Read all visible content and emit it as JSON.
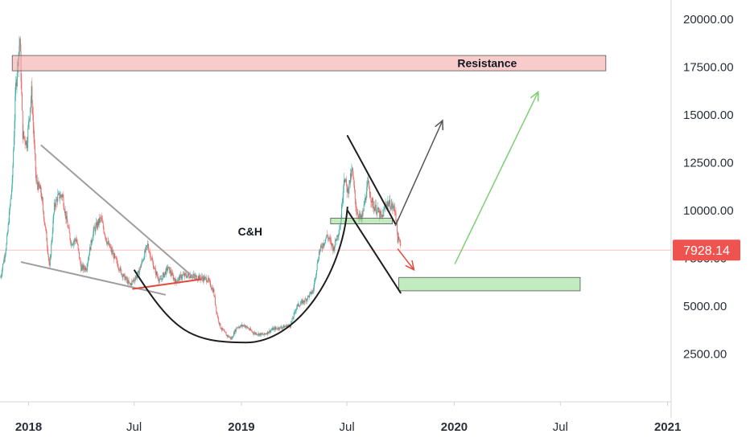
{
  "chart_data": {
    "type": "line",
    "title": "",
    "xlabel": "",
    "ylabel": "",
    "ylim": [
      0,
      21000
    ],
    "xlim": [
      "2017-11-13",
      "2021-01-07"
    ],
    "grid": false,
    "y_ticks": [
      {
        "value": 2500,
        "label": "2500.00"
      },
      {
        "value": 5000,
        "label": "5000.00"
      },
      {
        "value": 7500,
        "label": "7500.00"
      },
      {
        "value": 10000,
        "label": "10000.00"
      },
      {
        "value": 12500,
        "label": "12500.00"
      },
      {
        "value": 15000,
        "label": "15000.00"
      },
      {
        "value": 17500,
        "label": "17500.00"
      },
      {
        "value": 20000,
        "label": "20000.00"
      }
    ],
    "x_ticks": [
      {
        "date": "2018-01-01",
        "label": "2018",
        "bold": true
      },
      {
        "date": "2018-07-01",
        "label": "Jul",
        "bold": false
      },
      {
        "date": "2019-01-01",
        "label": "2019",
        "bold": true
      },
      {
        "date": "2019-07-01",
        "label": "Jul",
        "bold": false
      },
      {
        "date": "2020-01-01",
        "label": "2020",
        "bold": true
      },
      {
        "date": "2020-07-01",
        "label": "Jul",
        "bold": false
      },
      {
        "date": "2021-01-01",
        "label": "2021",
        "bold": true
      }
    ],
    "last_price": {
      "value": 7928.14,
      "label": "7928.14",
      "color": "#ef5350"
    },
    "series": [
      {
        "candle_colors": {
          "up": "#26a69a",
          "down": "#ef5350"
        },
        "x": [
          "2017-11-14",
          "2017-11-24",
          "2017-12-04",
          "2017-12-10",
          "2017-12-17",
          "2017-12-22",
          "2017-12-29",
          "2018-01-06",
          "2018-01-14",
          "2018-01-22",
          "2018-02-01",
          "2018-02-06",
          "2018-02-14",
          "2018-02-20",
          "2018-02-28",
          "2018-03-07",
          "2018-03-15",
          "2018-03-24",
          "2018-04-01",
          "2018-04-10",
          "2018-04-22",
          "2018-05-05",
          "2018-05-15",
          "2018-05-29",
          "2018-06-10",
          "2018-06-24",
          "2018-07-08",
          "2018-07-24",
          "2018-08-05",
          "2018-08-14",
          "2018-08-28",
          "2018-09-10",
          "2018-09-22",
          "2018-10-06",
          "2018-10-20",
          "2018-11-04",
          "2018-11-14",
          "2018-11-20",
          "2018-11-26",
          "2018-12-06",
          "2018-12-15",
          "2018-12-24",
          "2019-01-06",
          "2019-01-22",
          "2019-02-08",
          "2019-02-24",
          "2019-03-12",
          "2019-03-26",
          "2019-04-06",
          "2019-04-20",
          "2019-05-04",
          "2019-05-14",
          "2019-05-28",
          "2019-06-08",
          "2019-06-20",
          "2019-06-26",
          "2019-07-02",
          "2019-07-10",
          "2019-07-17",
          "2019-07-26",
          "2019-08-06",
          "2019-08-14",
          "2019-08-22",
          "2019-08-30",
          "2019-09-06",
          "2019-09-14",
          "2019-09-22",
          "2019-09-26",
          "2019-10-01"
        ],
        "values": [
          6500,
          8200,
          11500,
          16500,
          19000,
          14000,
          13500,
          16200,
          11500,
          11000,
          8500,
          7000,
          10200,
          10700,
          10800,
          9500,
          8300,
          8500,
          7000,
          7000,
          8900,
          9600,
          8400,
          7500,
          6700,
          6100,
          6700,
          8200,
          6900,
          6300,
          7000,
          6300,
          6600,
          6600,
          6500,
          6400,
          5800,
          4600,
          3900,
          3500,
          3300,
          3900,
          4000,
          3600,
          3500,
          3800,
          3900,
          4000,
          5000,
          5300,
          5800,
          7800,
          8700,
          8000,
          9300,
          11800,
          11000,
          12100,
          10000,
          9500,
          11400,
          10300,
          10000,
          9600,
          10400,
          10300,
          10000,
          8500,
          8300
        ]
      }
    ],
    "annotations": [
      {
        "text": "Resistance",
        "type": "zone",
        "x": [
          "2017-12-04",
          "2020-09-17"
        ],
        "y": [
          17300,
          18100
        ],
        "color": "#f4a3a3"
      },
      {
        "text": "C&H",
        "type": "label",
        "x": "2019-01-16",
        "y": 8700
      },
      {
        "type": "zone",
        "x": [
          "2019-09-28",
          "2020-08-04"
        ],
        "y": [
          5800,
          6500
        ],
        "color": "#8fdc8a"
      },
      {
        "type": "zone",
        "x": [
          "2019-06-03",
          "2019-09-17"
        ],
        "y": [
          9300,
          9600
        ],
        "color": "#8fdc8a"
      },
      {
        "type": "line",
        "x": [
          "2018-01-23",
          "2018-10-15"
        ],
        "y": [
          13400,
          6400
        ],
        "color": "#9e9e9e"
      },
      {
        "type": "line",
        "x": [
          "2017-12-20",
          "2018-08-23"
        ],
        "y": [
          7300,
          5600
        ],
        "color": "#9e9e9e"
      },
      {
        "type": "line",
        "x": [
          "2018-06-29",
          "2018-10-23"
        ],
        "y": [
          5900,
          6400
        ],
        "color": "#e24a3b"
      },
      {
        "type": "line",
        "x": [
          "2019-07-02",
          "2019-09-22"
        ],
        "y": [
          13900,
          9300
        ],
        "color": "#1e1e1e"
      },
      {
        "type": "line",
        "x": [
          "2019-07-02",
          "2019-10-01"
        ],
        "y": [
          10000,
          5700
        ],
        "color": "#1e1e1e"
      },
      {
        "type": "curve",
        "x": [
          "2018-07-01",
          "2019-01-09",
          "2019-07-02"
        ],
        "y": [
          6900,
          3100,
          10200
        ],
        "color": "#1e1e1e"
      },
      {
        "type": "arrow",
        "x": [
          "2019-09-22",
          "2019-12-12"
        ],
        "y": [
          9200,
          14700
        ],
        "color": "#555555"
      },
      {
        "type": "arrow",
        "x": [
          "2020-01-02",
          "2020-05-24"
        ],
        "y": [
          7200,
          16200
        ],
        "color": "#7ccf72"
      },
      {
        "type": "arrow",
        "x": [
          "2019-09-26",
          "2019-10-24"
        ],
        "y": [
          8000,
          6900
        ],
        "color": "#e24a3b"
      }
    ]
  }
}
